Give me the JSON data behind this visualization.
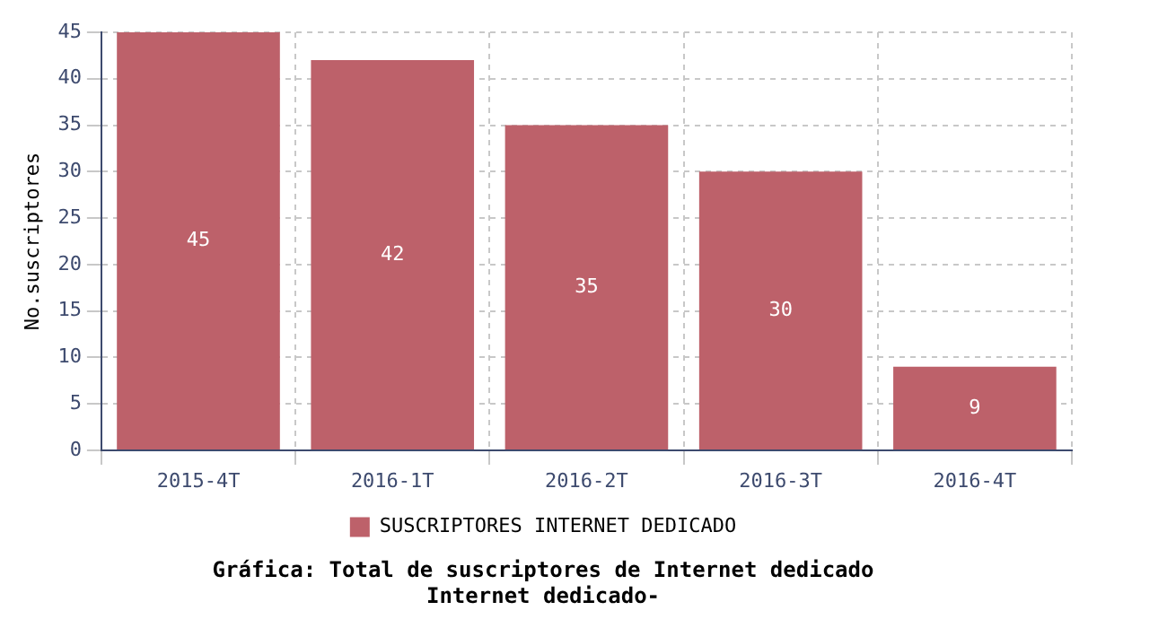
{
  "chart_data": {
    "type": "bar",
    "title": "Gráfica: Total de suscriptores de Internet dedicado",
    "subtitle": "Internet dedicado-",
    "ylabel": "No.suscriptores",
    "categories": [
      "2015-4T",
      "2016-1T",
      "2016-2T",
      "2016-3T",
      "2016-4T"
    ],
    "series": [
      {
        "name": "SUSCRIPTORES INTERNET DEDICADO",
        "color": "#bd616a",
        "values": [
          45,
          42,
          35,
          30,
          9
        ]
      }
    ],
    "ylim": [
      0,
      45
    ],
    "yticks": [
      0,
      5,
      10,
      15,
      20,
      25,
      30,
      35,
      40,
      45
    ],
    "grid": true,
    "legend": "bottom",
    "data_labels": true
  }
}
